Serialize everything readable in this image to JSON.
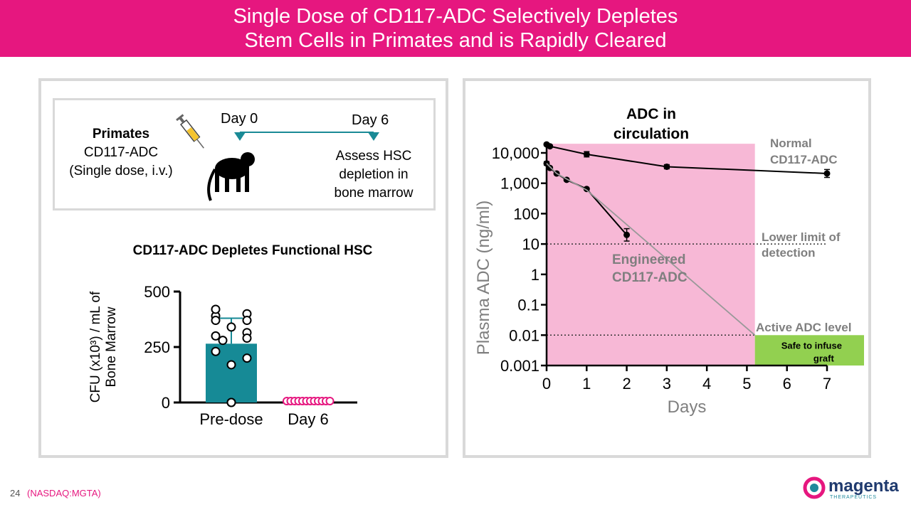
{
  "header": {
    "line1": "Single Dose of CD117-ADC Selectively Depletes",
    "line2": "Stem Cells in Primates and is Rapidly Cleared"
  },
  "protocol": {
    "subject": "Primates",
    "drug": "CD117-ADC",
    "dose": "(Single dose, i.v.)",
    "day0": "Day 0",
    "day6": "Day 6",
    "assess_line1": "Assess HSC",
    "assess_line2": "depletion in",
    "assess_line3": "bone marrow",
    "colors": {
      "arrow": "#1a8a96",
      "monkey": "#000000"
    },
    "icons": [
      "syringe-icon",
      "monkey-icon"
    ]
  },
  "bar_chart": {
    "title": "CD117-ADC Depletes Functional HSC"
  },
  "line_chart": {
    "title_line1": "ADC in",
    "title_line2": "circulation",
    "ylabel": "Plasma ADC (ng/ml)",
    "xlabel": "Days",
    "series_normal_line1": "Normal",
    "series_normal_line2": "CD117-ADC",
    "series_engineered_line1": "Engineered",
    "series_engineered_line2": "CD117-ADC",
    "lloq_line1": "Lower limit of",
    "lloq_line2": "detection",
    "active_level": "Active ADC level",
    "safe_line1": "Safe to infuse",
    "safe_line2": "graft"
  },
  "chart_data": [
    {
      "type": "bar",
      "title": "CD117-ADC Depletes Functional HSC",
      "ylabel_line1": "CFU (x10³) / mL of",
      "ylabel_line2": "Bone Marrow",
      "categories": [
        "Pre-dose",
        "Day 6"
      ],
      "values": [
        265,
        3
      ],
      "error_sd": [
        115,
        2
      ],
      "ylim": [
        0,
        500
      ],
      "yticks": [
        "0",
        "250",
        "500"
      ],
      "ytick_values": [
        0,
        250,
        500
      ],
      "points": [
        [
          0,
          390,
          420,
          400,
          370,
          370,
          340,
          315,
          300,
          290,
          280,
          230,
          200,
          170,
          0
        ],
        [
          0,
          0,
          0,
          0,
          0,
          0,
          0,
          0,
          0,
          0,
          0,
          0
        ]
      ],
      "colors": {
        "bar_predose": "#168a96",
        "day6_points": "#e6177f"
      }
    },
    {
      "type": "line",
      "title": "ADC in circulation",
      "xlabel": "Days",
      "ylabel": "Plasma ADC (ng/ml)",
      "yscale": "log",
      "xlim": [
        0,
        7
      ],
      "ylim": [
        0.001,
        20000
      ],
      "xticks": [
        "0",
        "1",
        "2",
        "3",
        "4",
        "5",
        "6",
        "7"
      ],
      "xtick_values": [
        0,
        1,
        2,
        3,
        4,
        5,
        6,
        7
      ],
      "yticks": [
        "0.001",
        "0.01",
        "0.1",
        "1",
        "10",
        "100",
        "1,000",
        "10,000"
      ],
      "ytick_values": [
        0.001,
        0.01,
        0.1,
        1,
        10,
        100,
        1000,
        10000
      ],
      "series": [
        {
          "name": "Normal CD117-ADC",
          "x": [
            0,
            0.083,
            1,
            3,
            7
          ],
          "y": [
            19000,
            16500,
            9000,
            3500,
            2100
          ],
          "err_up": [
            1.1,
            1.1,
            1.22,
            1.17,
            1.35
          ],
          "color": "#000000"
        },
        {
          "name": "Engineered CD117-ADC",
          "x": [
            0,
            0.083,
            0.25,
            0.5,
            1,
            2
          ],
          "y": [
            4500,
            3200,
            2100,
            1300,
            650,
            20
          ],
          "err_up": [
            1.15,
            1.1,
            1.1,
            1.05,
            1.05,
            1.6
          ],
          "color": "#000000"
        },
        {
          "name": "Engineered projection",
          "x": [
            0,
            0.25,
            1,
            5.2
          ],
          "y": [
            4500,
            2100,
            600,
            0.01
          ],
          "color": "#999999"
        }
      ],
      "lower_limit_of_detection": 10,
      "active_adc_level": 0.01,
      "shaded_region_x": [
        0,
        5.2
      ],
      "colors": {
        "shade": "#f7b8d6",
        "safe_box": "#92d050",
        "ref_line": "#333333",
        "gray_label": "#7f7f7f"
      }
    }
  ],
  "footer": {
    "page": "24",
    "ticker": "(NASDAQ:MGTA)",
    "logo_word": "magenta",
    "logo_sub": "THERAPEUTICS"
  }
}
